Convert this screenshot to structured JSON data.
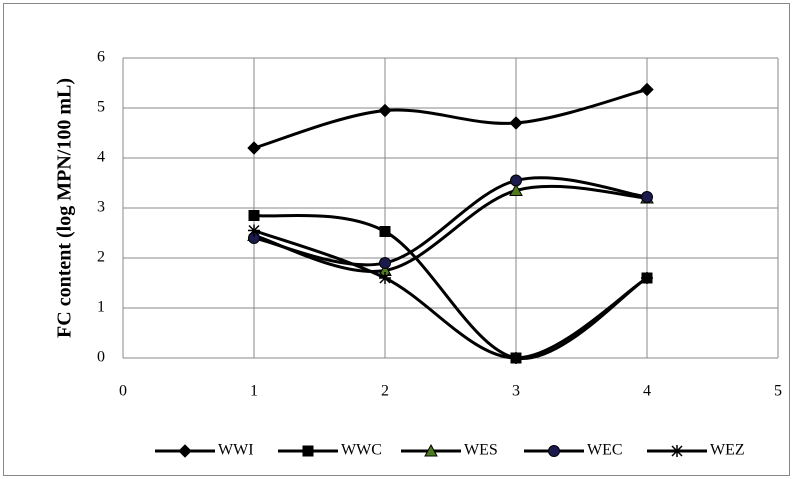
{
  "chart_data": {
    "type": "line",
    "y_label": "FC content (log MPN/100 mL)",
    "x": [
      1,
      2,
      3,
      4
    ],
    "xlim": [
      0,
      5
    ],
    "xticks": [
      0,
      1,
      2,
      3,
      4,
      5
    ],
    "ylim": [
      0,
      6
    ],
    "yticks": [
      0,
      1,
      2,
      3,
      4,
      5,
      6
    ],
    "grid": true,
    "legend": "bottom",
    "series": [
      {
        "name": "WWI",
        "color": "#000000",
        "marker": "diamond",
        "values": [
          4.2,
          4.95,
          4.7,
          5.37
        ]
      },
      {
        "name": "WWC",
        "color": "#000000",
        "marker": "square",
        "values": [
          2.85,
          2.53,
          0,
          1.6
        ]
      },
      {
        "name": "WES",
        "color": "#000000",
        "marker": "triangle",
        "marker_color": "#4d7a1e",
        "values": [
          2.45,
          1.75,
          3.35,
          3.2
        ]
      },
      {
        "name": "WEC",
        "color": "#000000",
        "marker": "circle",
        "marker_color": "#1a1a4d",
        "values": [
          2.4,
          1.9,
          3.55,
          3.22
        ]
      },
      {
        "name": "WEZ",
        "color": "#000000",
        "marker": "star",
        "values": [
          2.55,
          1.6,
          0,
          1.6
        ]
      }
    ]
  }
}
